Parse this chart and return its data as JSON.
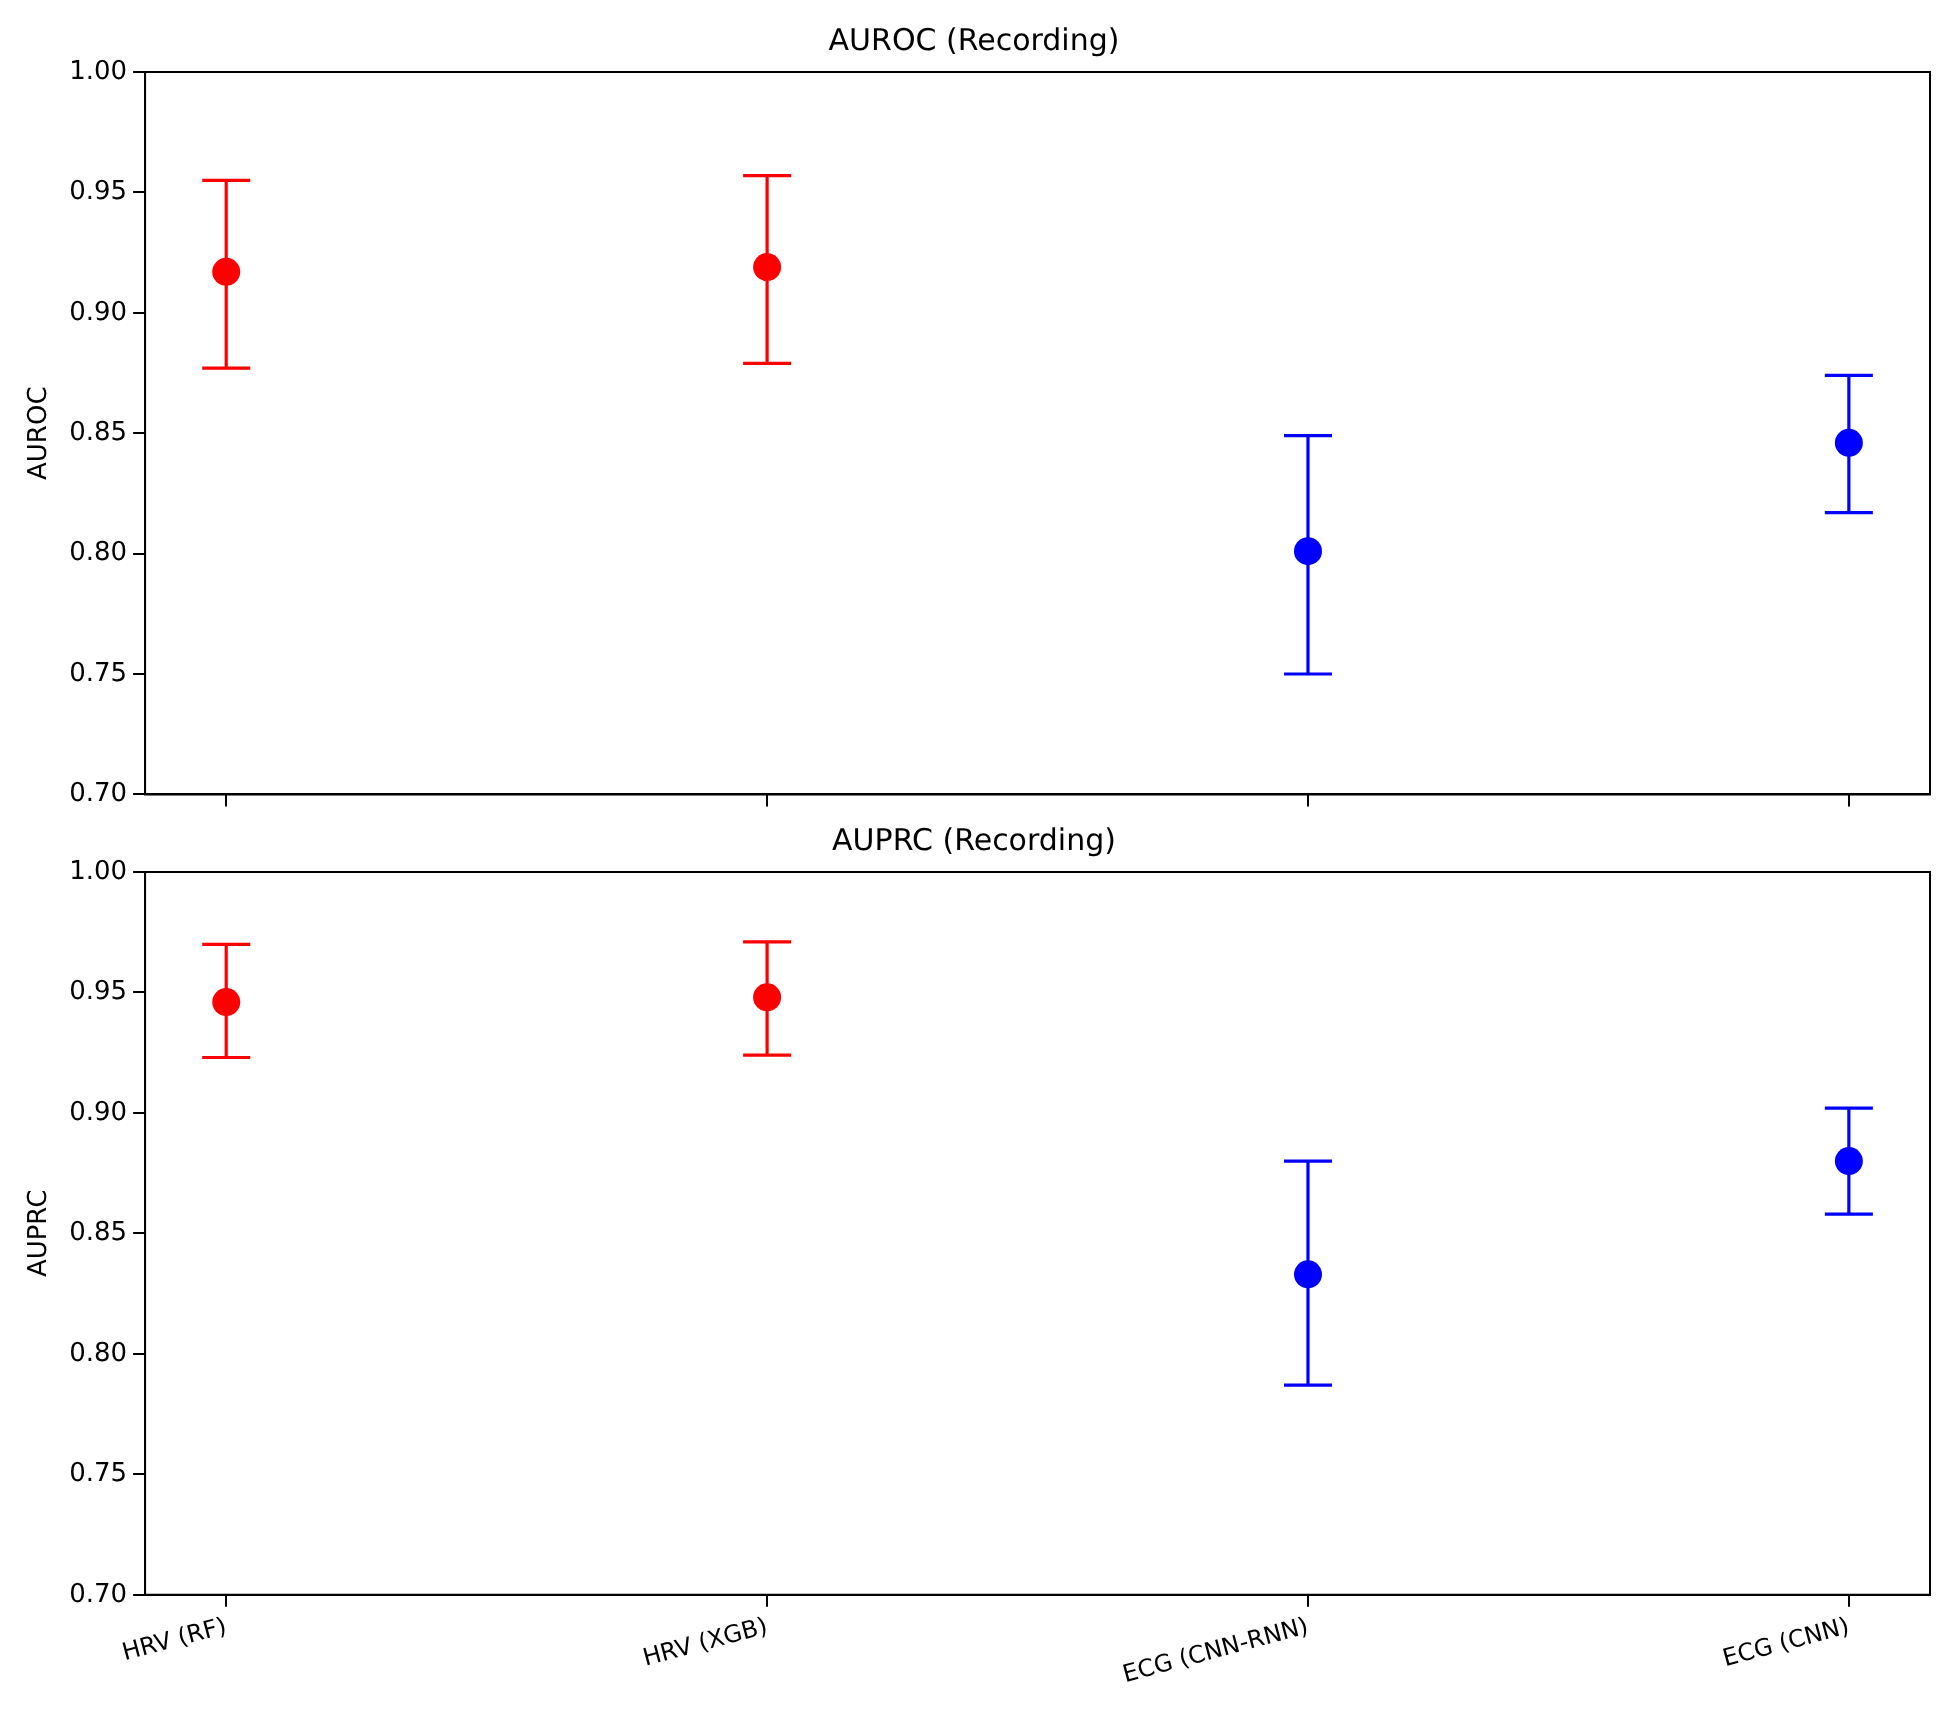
{
  "chart_data": [
    {
      "type": "scatter",
      "title": "AUROC (Recording)",
      "ylabel": "AUROC",
      "categories": [
        null,
        null,
        null,
        null
      ],
      "values": [
        0.917,
        0.919,
        0.801,
        0.846
      ],
      "colors": [
        "#ff0000",
        "#ff0000",
        "#0000ff",
        "#0000ff"
      ],
      "errors": [
        [
          0.877,
          0.955
        ],
        [
          0.879,
          0.957
        ],
        [
          0.75,
          0.849
        ],
        [
          0.817,
          0.874
        ]
      ],
      "ylim": [
        0.7,
        1.0
      ],
      "yticks": [
        {
          "value": 0.7,
          "label": "0.70"
        },
        {
          "value": 0.75,
          "label": "0.75"
        },
        {
          "value": 0.8,
          "label": "0.80"
        },
        {
          "value": 0.85,
          "label": "0.85"
        },
        {
          "value": 0.9,
          "label": "0.90"
        },
        {
          "value": 0.95,
          "label": "0.95"
        },
        {
          "value": 1.0,
          "label": "1.00"
        }
      ],
      "grid": false,
      "marker": "circle",
      "tick_labels": "y"
    },
    {
      "type": "scatter",
      "title": "AUPRC (Recording)",
      "ylabel": "AUPRC",
      "categories": [
        "HRV (RF)",
        "HRV (XGB)",
        "ECG (CNN-RNN)",
        "ECG (CNN)"
      ],
      "values": [
        0.946,
        0.948,
        0.833,
        0.88
      ],
      "colors": [
        "#ff0000",
        "#ff0000",
        "#0000ff",
        "#0000ff"
      ],
      "errors": [
        [
          0.923,
          0.97
        ],
        [
          0.924,
          0.971
        ],
        [
          0.787,
          0.88
        ],
        [
          0.858,
          0.902
        ]
      ],
      "ylim": [
        0.7,
        1.0
      ],
      "yticks": [
        {
          "value": 0.7,
          "label": "0.70"
        },
        {
          "value": 0.75,
          "label": "0.75"
        },
        {
          "value": 0.8,
          "label": "0.80"
        },
        {
          "value": 0.85,
          "label": "0.85"
        },
        {
          "value": 0.9,
          "label": "0.90"
        },
        {
          "value": 0.95,
          "label": "0.95"
        },
        {
          "value": 1.0,
          "label": "1.00"
        }
      ],
      "grid": false,
      "marker": "circle"
    }
  ]
}
